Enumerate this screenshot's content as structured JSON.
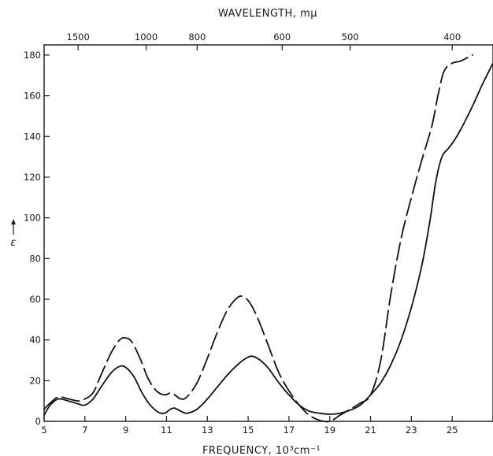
{
  "chart_data": {
    "type": "line",
    "title": "",
    "xlabel": "FREQUENCY, 10³cm⁻¹",
    "ylabel": "ε",
    "top_axis_label": "WAVELENGTH, mμ",
    "xlim": [
      5,
      27
    ],
    "ylim": [
      0,
      185
    ],
    "x_ticks": [
      5,
      7,
      9,
      11,
      13,
      15,
      17,
      19,
      21,
      23,
      25
    ],
    "x_tick_labels": [
      "5",
      "7",
      "9",
      "11",
      "13",
      "15",
      "17",
      "19",
      "21",
      "23",
      "25"
    ],
    "y_ticks": [
      0,
      20,
      40,
      60,
      80,
      100,
      120,
      140,
      160,
      180
    ],
    "y_tick_labels": [
      "0",
      "20",
      "40",
      "60",
      "80",
      "100",
      "120",
      "140",
      "160",
      "180"
    ],
    "top_ticks": [
      {
        "label": "1500",
        "wavelength_nm": 1500
      },
      {
        "label": "1000",
        "wavelength_nm": 1000
      },
      {
        "label": "800",
        "wavelength_nm": 800
      },
      {
        "label": "600",
        "wavelength_nm": 600
      },
      {
        "label": "500",
        "wavelength_nm": 500
      },
      {
        "label": "400",
        "wavelength_nm": 400
      }
    ],
    "series": [
      {
        "style": "solid",
        "points": [
          [
            5.0,
            3
          ],
          [
            5.3,
            8
          ],
          [
            5.7,
            11
          ],
          [
            6.2,
            10
          ],
          [
            6.7,
            8.5
          ],
          [
            7.0,
            8
          ],
          [
            7.4,
            11
          ],
          [
            7.8,
            17
          ],
          [
            8.3,
            24
          ],
          [
            8.7,
            27
          ],
          [
            9.0,
            26.5
          ],
          [
            9.4,
            22
          ],
          [
            9.8,
            14
          ],
          [
            10.2,
            8
          ],
          [
            10.6,
            4.5
          ],
          [
            10.9,
            4
          ],
          [
            11.2,
            6
          ],
          [
            11.4,
            6.5
          ],
          [
            11.7,
            5
          ],
          [
            12.0,
            4
          ],
          [
            12.5,
            6
          ],
          [
            13.0,
            11
          ],
          [
            13.5,
            17
          ],
          [
            14.0,
            23
          ],
          [
            14.5,
            28
          ],
          [
            14.9,
            31
          ],
          [
            15.2,
            32
          ],
          [
            15.6,
            30
          ],
          [
            16.0,
            26
          ],
          [
            16.5,
            19
          ],
          [
            17.0,
            13
          ],
          [
            17.5,
            8
          ],
          [
            18.0,
            5
          ],
          [
            18.5,
            4
          ],
          [
            19.0,
            3.5
          ],
          [
            19.5,
            4
          ],
          [
            20.0,
            5.5
          ],
          [
            20.5,
            8
          ],
          [
            21.0,
            13
          ],
          [
            21.5,
            19
          ],
          [
            22.0,
            28
          ],
          [
            22.5,
            40
          ],
          [
            23.0,
            56
          ],
          [
            23.5,
            76
          ],
          [
            23.9,
            98
          ],
          [
            24.2,
            118
          ],
          [
            24.5,
            130
          ],
          [
            24.8,
            134
          ],
          [
            25.1,
            138
          ],
          [
            25.5,
            145
          ],
          [
            26.0,
            155
          ],
          [
            26.5,
            166
          ],
          [
            27.0,
            176
          ]
        ]
      },
      {
        "style": "dashed",
        "points": [
          [
            5.0,
            6
          ],
          [
            5.3,
            9
          ],
          [
            5.7,
            12
          ],
          [
            6.2,
            11
          ],
          [
            6.7,
            10
          ],
          [
            7.0,
            11
          ],
          [
            7.4,
            14
          ],
          [
            7.8,
            23
          ],
          [
            8.3,
            34
          ],
          [
            8.7,
            40
          ],
          [
            9.0,
            41
          ],
          [
            9.3,
            39
          ],
          [
            9.7,
            31
          ],
          [
            10.1,
            21
          ],
          [
            10.5,
            15
          ],
          [
            10.9,
            13
          ],
          [
            11.2,
            14
          ],
          [
            11.4,
            13
          ],
          [
            11.7,
            11
          ],
          [
            12.0,
            12
          ],
          [
            12.5,
            19
          ],
          [
            13.0,
            31
          ],
          [
            13.5,
            44
          ],
          [
            14.0,
            55
          ],
          [
            14.5,
            61
          ],
          [
            14.8,
            61
          ],
          [
            15.1,
            58
          ],
          [
            15.5,
            50
          ],
          [
            16.0,
            37
          ],
          [
            16.5,
            24
          ],
          [
            17.0,
            15
          ],
          [
            17.5,
            8
          ],
          [
            18.0,
            3
          ],
          [
            18.5,
            0.5
          ],
          [
            19.0,
            0
          ],
          [
            19.5,
            3
          ],
          [
            20.0,
            6
          ],
          [
            20.5,
            9
          ],
          [
            21.0,
            13
          ],
          [
            21.5,
            30
          ],
          [
            22.0,
            63
          ],
          [
            22.5,
            90
          ],
          [
            23.0,
            110
          ],
          [
            23.5,
            128
          ],
          [
            24.0,
            145
          ],
          [
            24.3,
            160
          ],
          [
            24.6,
            172
          ],
          [
            25.0,
            176
          ],
          [
            25.4,
            177
          ],
          [
            25.8,
            179
          ],
          [
            26.0,
            180
          ]
        ]
      }
    ]
  }
}
